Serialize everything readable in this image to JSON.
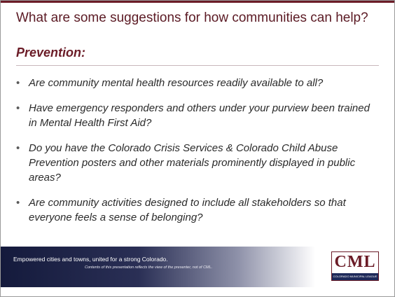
{
  "title": "What are some suggestions for how communities can help?",
  "subtitle": "Prevention:",
  "bullets": [
    "Are community mental health resources readily available to all?",
    "Have emergency responders and others under your purview been trained in Mental Health First Aid?",
    "Do you have the Colorado Crisis Services & Colorado Child Abuse Prevention posters and other materials prominently displayed in public areas?",
    "Are community activities designed to include all stakeholders so that everyone feels a sense of belonging?"
  ],
  "footer": {
    "tagline": "Empowered cities and towns, united for a strong Colorado.",
    "disclaimer": "Contents of this presentation reflects the view of the presenter, not of CML."
  },
  "logo": {
    "text": "CML",
    "subtext": "COLORADO MUNICIPAL LEAGUE"
  }
}
